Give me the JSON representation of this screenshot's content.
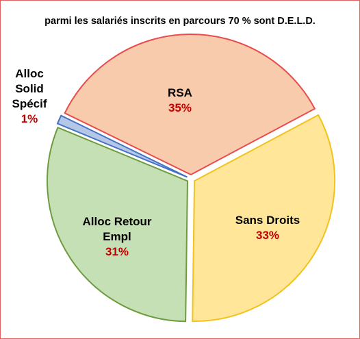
{
  "chart_data": {
    "type": "pie",
    "title": "parmi les salariés inscrits en parcours 70 % sont D.E.L.D.",
    "categories": [
      "RSA",
      "Sans Droits",
      "Alloc Retour Empl",
      "Alloc Solid Spécif"
    ],
    "values": [
      35,
      33,
      31,
      1
    ],
    "value_labels": [
      "35%",
      "33%",
      "31%",
      "1%"
    ],
    "colors": [
      "#f8cbad",
      "#ffe699",
      "#c5e0b4",
      "#b4c7e7"
    ],
    "stroke_colors": [
      "#e84c4c",
      "#f2c21b",
      "#6d9c3f",
      "#4472c4"
    ]
  }
}
